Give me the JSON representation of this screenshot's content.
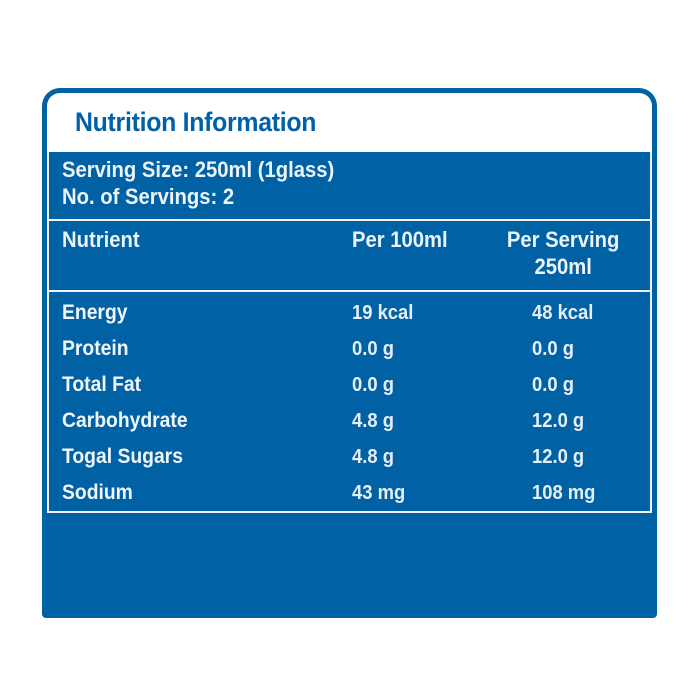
{
  "colors": {
    "brand_blue": "#0061A5",
    "title_blue": "#0061A8",
    "rule_white": "#EFF5FA",
    "text_on_blue": "#ECF3F9"
  },
  "label": {
    "title": "Nutrition Information",
    "serving_info": [
      "Serving Size: 250ml (1glass)",
      "No. of Servings: 2"
    ],
    "table": {
      "columns": {
        "nutrient": "Nutrient",
        "per_100ml": "Per 100ml",
        "per_serving_line1": "Per Serving",
        "per_serving_line2": "250ml"
      },
      "rows": [
        {
          "nutrient": "Energy",
          "per_100ml": "19 kcal",
          "per_serving": "48 kcal"
        },
        {
          "nutrient": "Protein",
          "per_100ml": "0.0 g",
          "per_serving": "0.0 g"
        },
        {
          "nutrient": "Total Fat",
          "per_100ml": "0.0 g",
          "per_serving": "0.0 g"
        },
        {
          "nutrient": "Carbohydrate",
          "per_100ml": "4.8 g",
          "per_serving": "12.0 g"
        },
        {
          "nutrient": "Togal Sugars",
          "per_100ml": "4.8 g",
          "per_serving": "12.0 g"
        },
        {
          "nutrient": "Sodium",
          "per_100ml": "43 mg",
          "per_serving": "108 mg"
        }
      ]
    }
  }
}
